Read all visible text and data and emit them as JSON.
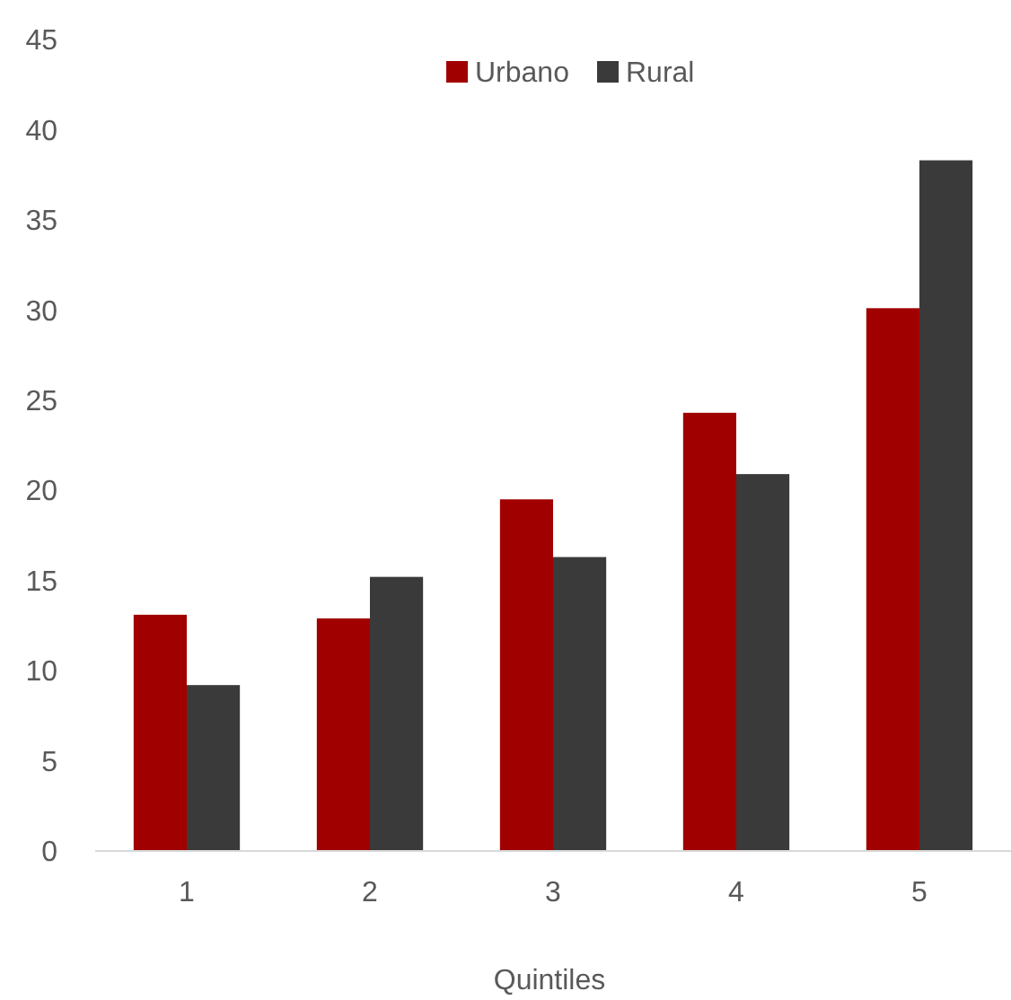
{
  "chart_data": {
    "type": "bar",
    "xlabel": "Quintiles",
    "categories": [
      "1",
      "2",
      "3",
      "4",
      "5"
    ],
    "series": [
      {
        "name": "Urbano",
        "color": "#a00000",
        "values": [
          13.1,
          12.9,
          19.5,
          24.3,
          30.1
        ]
      },
      {
        "name": "Rural",
        "color": "#3a3a3a",
        "values": [
          9.2,
          15.2,
          16.3,
          20.9,
          38.3
        ]
      }
    ],
    "ylim": [
      0,
      45
    ],
    "yticks": [
      0,
      5,
      10,
      15,
      20,
      25,
      30,
      35,
      40,
      45
    ],
    "grid": false,
    "legend": "top"
  }
}
